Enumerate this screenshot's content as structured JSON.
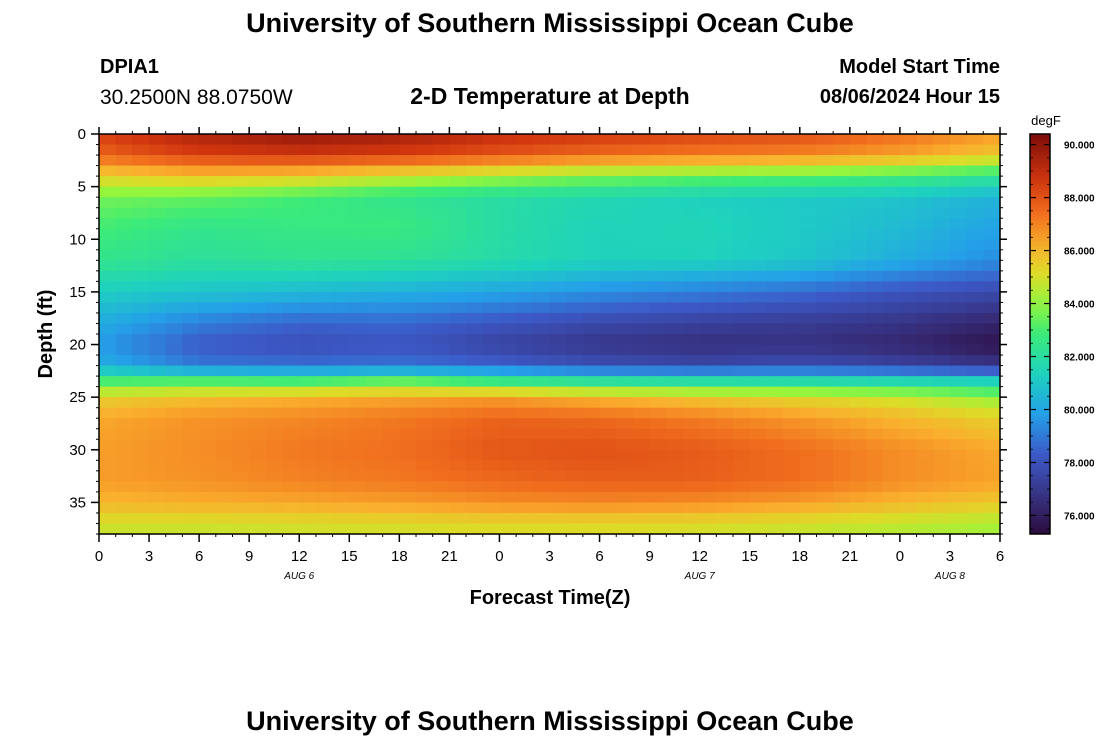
{
  "header": {
    "title": "University of Southern Mississippi Ocean Cube",
    "footer_title": "University of Southern Mississippi Ocean Cube",
    "station_id": "DPIA1",
    "station_coords": "30.2500N  88.0750W",
    "plot_title": "2-D Temperature at Depth",
    "start_label": "Model Start Time",
    "start_value": "08/06/2024 Hour 15"
  },
  "chart_data": {
    "type": "heatmap",
    "title": "2-D Temperature at Depth",
    "xlabel": "Forecast Time(Z)",
    "ylabel": "Depth (ft)",
    "x_tick_labels": [
      "0",
      "3",
      "6",
      "9",
      "12",
      "15",
      "18",
      "21",
      "0",
      "3",
      "6",
      "9",
      "12",
      "15",
      "18",
      "21",
      "0",
      "3",
      "6"
    ],
    "x_range": [
      0,
      54
    ],
    "date_labels": [
      {
        "label": "AUG 6",
        "at_hour": 12
      },
      {
        "label": "AUG 7",
        "at_hour": 36
      },
      {
        "label": "AUG 8",
        "at_hour": 51
      }
    ],
    "y_ticks": [
      0,
      5,
      10,
      15,
      20,
      25,
      30,
      35
    ],
    "y_range": [
      0,
      38
    ],
    "colorbar": {
      "unit": "degF",
      "ticks": [
        "90.000",
        "88.000",
        "86.000",
        "84.000",
        "82.000",
        "80.000",
        "78.000",
        "76.000"
      ],
      "range": [
        75.3,
        90.4
      ]
    },
    "hours": [
      0,
      6,
      12,
      18,
      24,
      30,
      36,
      42,
      48,
      54
    ],
    "depths": [
      0,
      2,
      4,
      6,
      9,
      12,
      15,
      18,
      20,
      22,
      23.5,
      25,
      27,
      30,
      33,
      35,
      37,
      38
    ],
    "values": [
      [
        88.4,
        89.4,
        89.9,
        89.6,
        88.9,
        88.6,
        88.3,
        88.1,
        87.4,
        86.5
      ],
      [
        87.6,
        88.4,
        88.6,
        88.4,
        87.9,
        87.4,
        87.1,
        86.9,
        86.4,
        85.6
      ],
      [
        85.4,
        85.8,
        85.6,
        84.9,
        84.3,
        83.8,
        83.5,
        83.3,
        82.9,
        82.3
      ],
      [
        83.6,
        83.4,
        82.9,
        82.4,
        81.9,
        81.6,
        81.3,
        81.1,
        80.9,
        80.4
      ],
      [
        82.9,
        82.4,
        82.6,
        82.7,
        81.9,
        81.4,
        81.5,
        81.1,
        80.6,
        79.9
      ],
      [
        82.4,
        82.1,
        82.3,
        82.2,
        81.8,
        81.4,
        81.4,
        81.0,
        80.2,
        79.4
      ],
      [
        81.2,
        80.9,
        80.6,
        80.3,
        80.0,
        79.5,
        79.1,
        78.7,
        78.1,
        77.7
      ],
      [
        80.2,
        79.1,
        78.5,
        78.6,
        78.1,
        77.6,
        77.3,
        77.1,
        76.8,
        76.2
      ],
      [
        79.7,
        78.3,
        77.9,
        78.1,
        77.4,
        76.9,
        76.6,
        76.7,
        76.3,
        75.6
      ],
      [
        80.3,
        79.0,
        78.8,
        78.9,
        78.5,
        77.9,
        77.7,
        77.9,
        77.5,
        76.9
      ],
      [
        83.0,
        83.1,
        82.9,
        83.4,
        82.6,
        82.1,
        81.9,
        81.8,
        81.6,
        81.3
      ],
      [
        85.4,
        85.8,
        86.1,
        86.3,
        86.5,
        86.0,
        85.6,
        85.2,
        84.8,
        84.0
      ],
      [
        86.3,
        86.7,
        86.9,
        87.2,
        87.6,
        87.5,
        87.1,
        86.6,
        86.0,
        85.4
      ],
      [
        86.5,
        86.8,
        87.2,
        87.4,
        87.9,
        88.0,
        87.8,
        87.4,
        86.8,
        86.3
      ],
      [
        86.5,
        86.7,
        87.0,
        87.2,
        87.5,
        87.7,
        87.7,
        87.4,
        86.8,
        86.4
      ],
      [
        86.0,
        86.2,
        86.3,
        86.5,
        86.8,
        86.9,
        86.8,
        86.5,
        86.0,
        85.6
      ],
      [
        85.0,
        85.0,
        85.1,
        85.2,
        85.3,
        85.3,
        85.2,
        85.0,
        84.7,
        84.4
      ],
      [
        84.7,
        84.7,
        84.8,
        84.9,
        85.0,
        85.0,
        84.9,
        84.7,
        84.5,
        84.2
      ]
    ]
  }
}
